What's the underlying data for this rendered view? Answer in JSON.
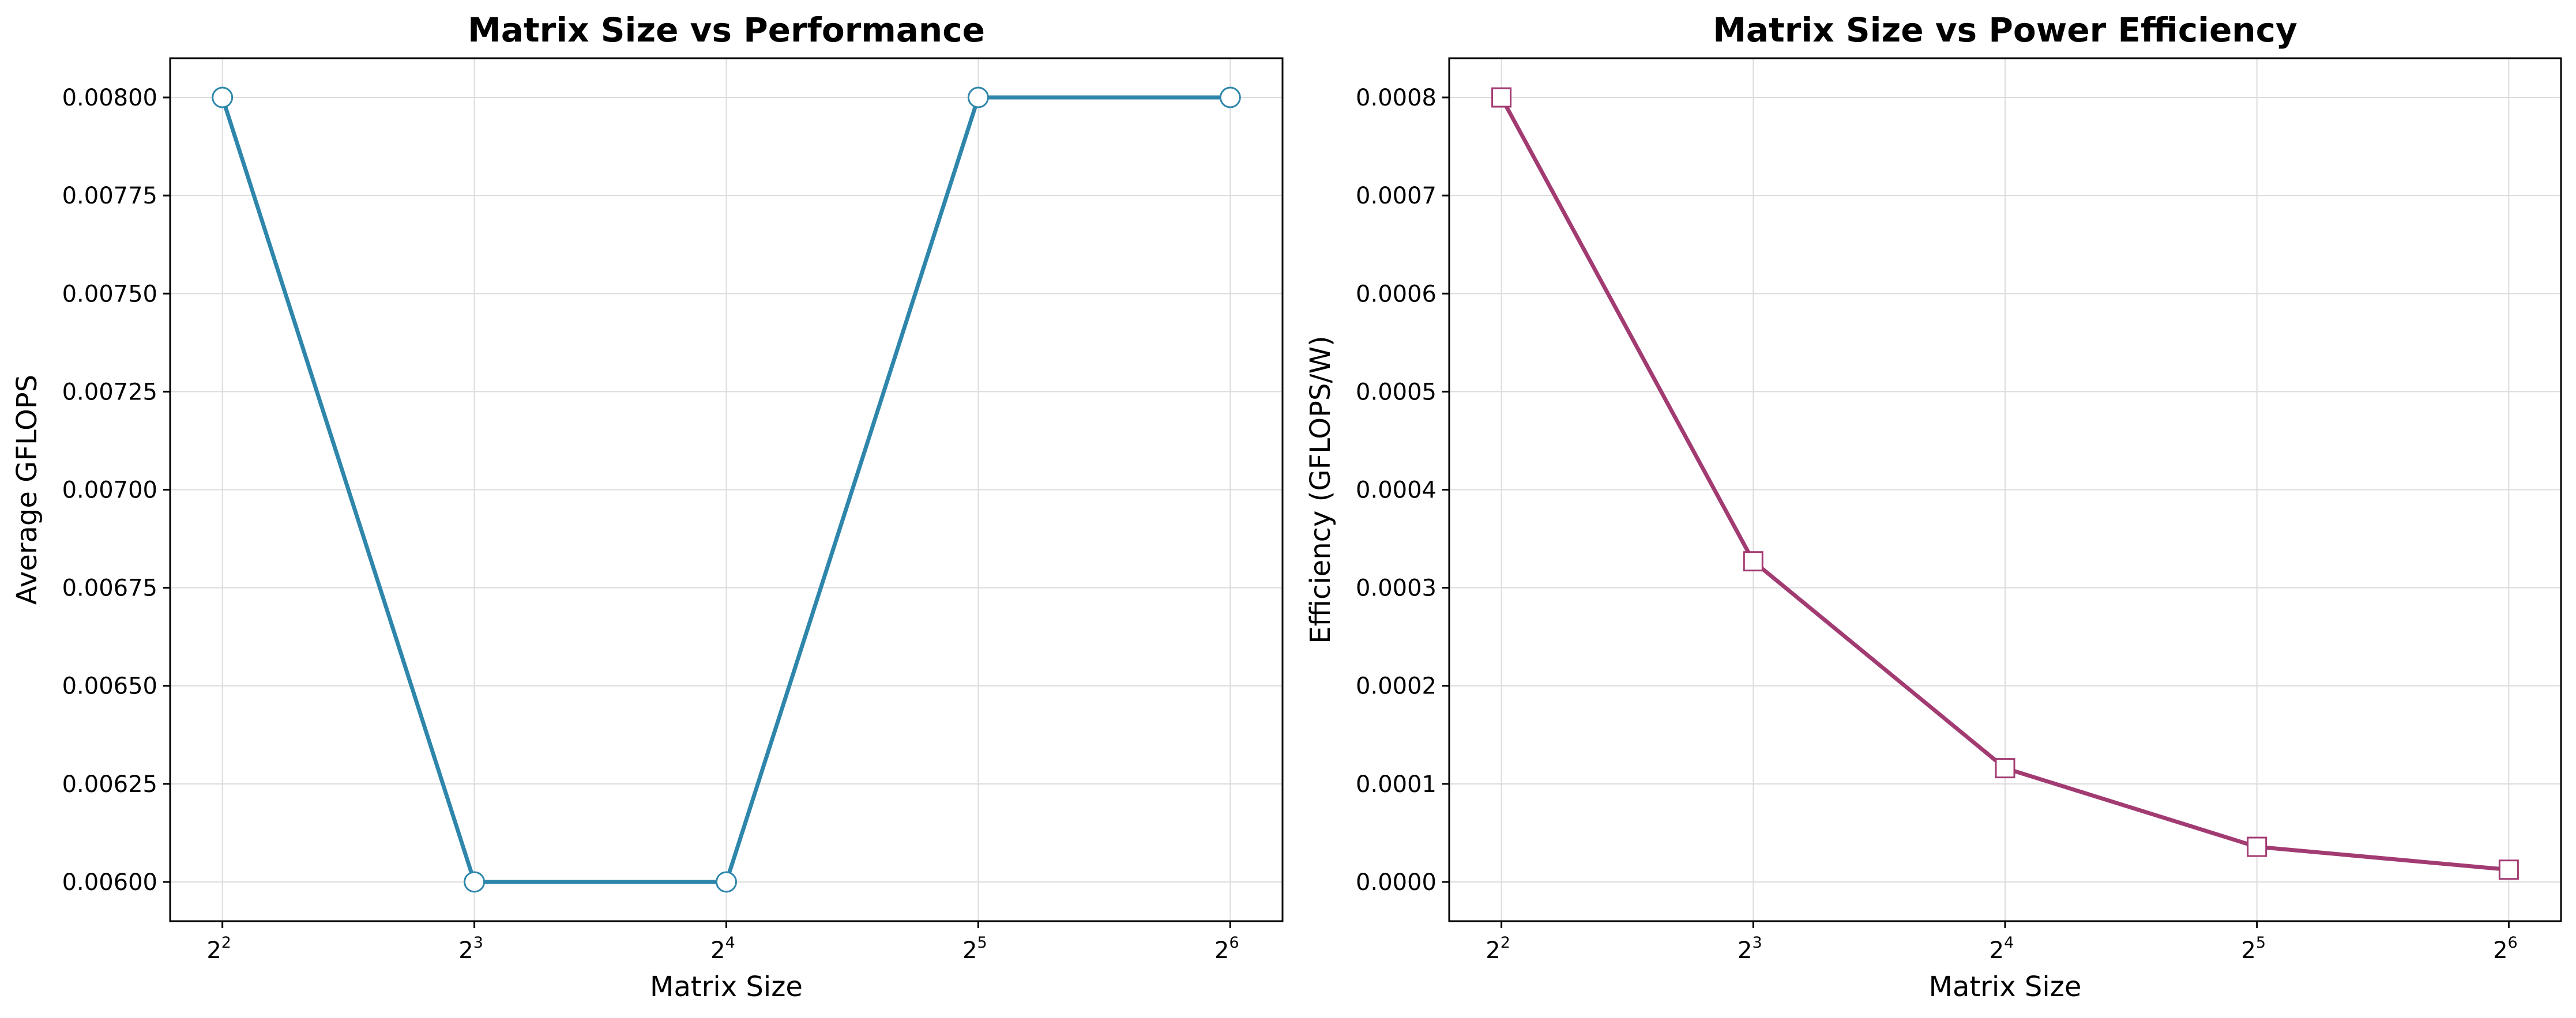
{
  "chart_data": [
    {
      "type": "line",
      "title": "Matrix Size vs Performance",
      "xlabel": "Matrix Size",
      "ylabel": "Average GFLOPS",
      "x_scale": "log2",
      "x": [
        4,
        8,
        16,
        32,
        64
      ],
      "x_ticks": [
        {
          "base": "2",
          "exp": "2"
        },
        {
          "base": "2",
          "exp": "3"
        },
        {
          "base": "2",
          "exp": "4"
        },
        {
          "base": "2",
          "exp": "5"
        },
        {
          "base": "2",
          "exp": "6"
        }
      ],
      "y_ticks": [
        "0.00600",
        "0.00625",
        "0.00650",
        "0.00675",
        "0.00700",
        "0.00725",
        "0.00750",
        "0.00775",
        "0.00800"
      ],
      "ylim": [
        0.0059,
        0.0081
      ],
      "grid": true,
      "marker": "circle",
      "color": "#2e86ab",
      "series": [
        {
          "values": [
            0.008,
            0.006,
            0.006,
            0.008,
            0.008
          ]
        }
      ]
    },
    {
      "type": "line",
      "title": "Matrix Size vs Power Efficiency",
      "xlabel": "Matrix Size",
      "ylabel": "Efficiency (GFLOPS/W)",
      "x_scale": "log2",
      "x": [
        4,
        8,
        16,
        32,
        64
      ],
      "x_ticks": [
        {
          "base": "2",
          "exp": "2"
        },
        {
          "base": "2",
          "exp": "3"
        },
        {
          "base": "2",
          "exp": "4"
        },
        {
          "base": "2",
          "exp": "5"
        },
        {
          "base": "2",
          "exp": "6"
        }
      ],
      "y_ticks": [
        "0.0000",
        "0.0001",
        "0.0002",
        "0.0003",
        "0.0004",
        "0.0005",
        "0.0006",
        "0.0007",
        "0.0008"
      ],
      "ylim": [
        -4e-05,
        0.00084
      ],
      "grid": true,
      "marker": "square",
      "color": "#a23b72",
      "series": [
        {
          "values": [
            0.0008,
            0.000327,
            0.000116,
            3.58e-05,
            1.25e-05
          ]
        }
      ]
    }
  ]
}
